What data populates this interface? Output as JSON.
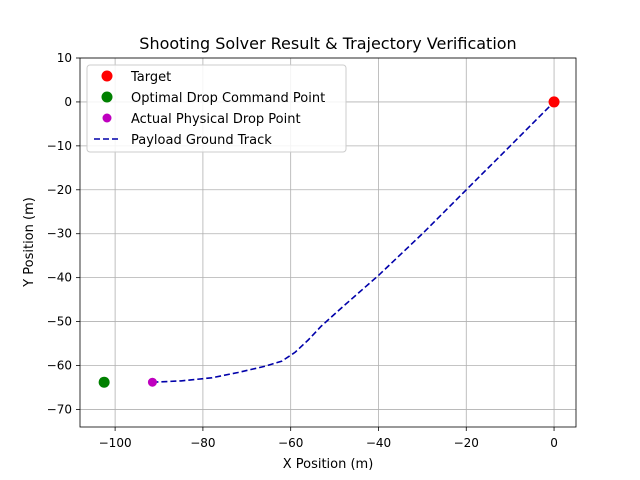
{
  "chart_data": {
    "type": "line",
    "title": "Shooting Solver Result & Trajectory Verification",
    "xlabel": "X Position (m)",
    "ylabel": "Y Position (m)",
    "xlim": [
      -108,
      5
    ],
    "ylim": [
      -74,
      10
    ],
    "xticks": [
      -100,
      -80,
      -60,
      -40,
      -20,
      0
    ],
    "yticks": [
      10,
      0,
      -10,
      -20,
      -30,
      -40,
      -50,
      -60,
      -70
    ],
    "xtick_labels": [
      "−100",
      "−80",
      "−60",
      "−40",
      "−20",
      "0"
    ],
    "ytick_labels": [
      "10",
      "0",
      "−10",
      "−20",
      "−30",
      "−40",
      "−50",
      "−60",
      "−70"
    ],
    "grid": true,
    "legend_position": "top-left",
    "series": [
      {
        "name": "Target",
        "kind": "point",
        "color": "#ff0000",
        "x": [
          0
        ],
        "y": [
          0
        ]
      },
      {
        "name": "Optimal Drop Command Point",
        "kind": "point",
        "color": "#008000",
        "x": [
          -102.5
        ],
        "y": [
          -63.8
        ]
      },
      {
        "name": "Actual Physical Drop Point",
        "kind": "point",
        "color": "#bf00bf",
        "x": [
          -91.5
        ],
        "y": [
          -63.8
        ]
      },
      {
        "name": "Payload Ground Track",
        "kind": "dashed-line",
        "color": "#0000aa",
        "x": [
          -91.5,
          -85,
          -78,
          -72,
          -66,
          -62,
          -59,
          -56,
          -53,
          -48,
          -40,
          -30,
          -20,
          -10,
          0
        ],
        "y": [
          -63.8,
          -63.5,
          -62.8,
          -61.6,
          -60.2,
          -59,
          -57,
          -54.2,
          -51,
          -46.5,
          -39.5,
          -30,
          -20,
          -10,
          0
        ]
      }
    ]
  }
}
